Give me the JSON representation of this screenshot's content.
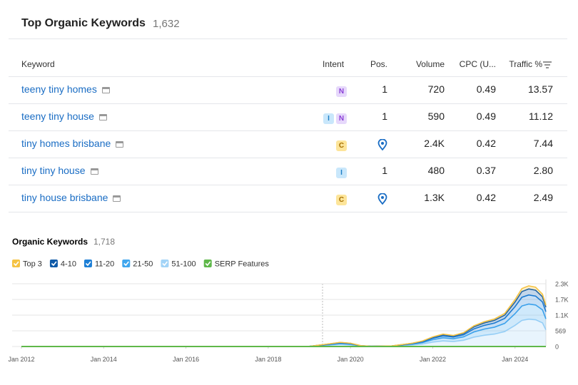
{
  "header": {
    "title": "Top Organic Keywords",
    "count": "1,632"
  },
  "table": {
    "columns": [
      "Keyword",
      "Intent",
      "Pos.",
      "Volume",
      "CPC (U...",
      "Traffic %"
    ],
    "rows": [
      {
        "keyword": "teeny tiny homes",
        "intent": [
          "N"
        ],
        "pos": "1",
        "volume": "720",
        "cpc": "0.49",
        "traffic": "13.57"
      },
      {
        "keyword": "teeny tiny house",
        "intent": [
          "I",
          "N"
        ],
        "pos": "1",
        "volume": "590",
        "cpc": "0.49",
        "traffic": "11.12"
      },
      {
        "keyword": "tiny homes brisbane",
        "intent": [
          "C"
        ],
        "pos": null,
        "volume": "2.4K",
        "cpc": "0.42",
        "traffic": "7.44"
      },
      {
        "keyword": "tiny tiny house",
        "intent": [
          "I"
        ],
        "pos": "1",
        "volume": "480",
        "cpc": "0.37",
        "traffic": "2.80"
      },
      {
        "keyword": "tiny house brisbane",
        "intent": [
          "C"
        ],
        "pos": null,
        "volume": "1.3K",
        "cpc": "0.42",
        "traffic": "2.49"
      }
    ]
  },
  "chart_data": {
    "type": "area",
    "title": "Organic Keywords",
    "count": "1,718",
    "x": [
      "2012-01",
      "2014-01",
      "2016-01",
      "2018-01",
      "2019-01",
      "2019-07",
      "2019-10",
      "2020-01",
      "2020-04",
      "2020-07",
      "2021-01",
      "2021-07",
      "2021-10",
      "2022-01",
      "2022-04",
      "2022-07",
      "2022-10",
      "2023-01",
      "2023-04",
      "2023-07",
      "2023-10",
      "2024-01",
      "2024-03",
      "2024-05",
      "2024-07",
      "2024-09",
      "2024-10"
    ],
    "xlim": [
      "2012-01",
      "2024-10"
    ],
    "xticks": [
      {
        "value": "2012-01",
        "label": "Jan 2012"
      },
      {
        "value": "2014-01",
        "label": "Jan 2014"
      },
      {
        "value": "2016-01",
        "label": "Jan 2016"
      },
      {
        "value": "2018-01",
        "label": "Jan 2018"
      },
      {
        "value": "2020-01",
        "label": "Jan 2020"
      },
      {
        "value": "2022-01",
        "label": "Jan 2022"
      },
      {
        "value": "2024-01",
        "label": "Jan 2024"
      }
    ],
    "ylim": [
      0,
      2276
    ],
    "yticks": [
      0,
      569,
      {
        "value": 1138,
        "label": "1.1K"
      },
      {
        "value": 1707,
        "label": "1.7K"
      },
      {
        "value": 2276,
        "label": "2.3K"
      }
    ],
    "grid": true,
    "series": [
      {
        "name": "Top 3",
        "color": "#f5c343",
        "values": [
          0,
          0,
          0,
          0,
          0,
          5,
          7,
          6,
          1,
          0,
          1,
          6,
          10,
          17,
          22,
          20,
          25,
          37,
          45,
          50,
          60,
          85,
          105,
          110,
          107,
          95,
          70
        ]
      },
      {
        "name": "4-10",
        "color": "#0f5aa8",
        "values": [
          0,
          0,
          0,
          0,
          1,
          10,
          15,
          12,
          3,
          1,
          2,
          12,
          20,
          35,
          45,
          40,
          50,
          75,
          90,
          100,
          120,
          170,
          210,
          220,
          215,
          190,
          170
        ]
      },
      {
        "name": "11-20",
        "color": "#1e7fd6",
        "values": [
          0,
          0,
          0,
          0,
          1,
          15,
          22,
          18,
          4,
          2,
          3,
          18,
          30,
          52,
          67,
          60,
          75,
          112,
          135,
          150,
          180,
          255,
          315,
          330,
          322,
          285,
          260
        ]
      },
      {
        "name": "21-50",
        "color": "#3fa6ee",
        "values": [
          0,
          0,
          0,
          0,
          1,
          25,
          38,
          30,
          8,
          2,
          5,
          30,
          50,
          88,
          113,
          100,
          125,
          188,
          225,
          250,
          300,
          425,
          525,
          550,
          538,
          475,
          400
        ]
      },
      {
        "name": "51-100",
        "color": "#a3d4f7",
        "values": [
          0,
          0,
          0,
          0,
          2,
          45,
          68,
          54,
          14,
          5,
          9,
          54,
          90,
          158,
          203,
          180,
          225,
          338,
          405,
          450,
          540,
          765,
          945,
          990,
          968,
          855,
          600
        ]
      }
    ],
    "serp": {
      "name": "SERP Features",
      "color": "#5fb84a",
      "values": [
        0,
        0,
        0,
        0,
        0,
        0,
        0,
        0,
        0,
        0,
        0,
        0,
        0,
        0,
        0,
        0,
        0,
        0,
        0,
        0,
        0,
        0,
        0,
        0,
        0,
        0,
        0
      ]
    }
  }
}
